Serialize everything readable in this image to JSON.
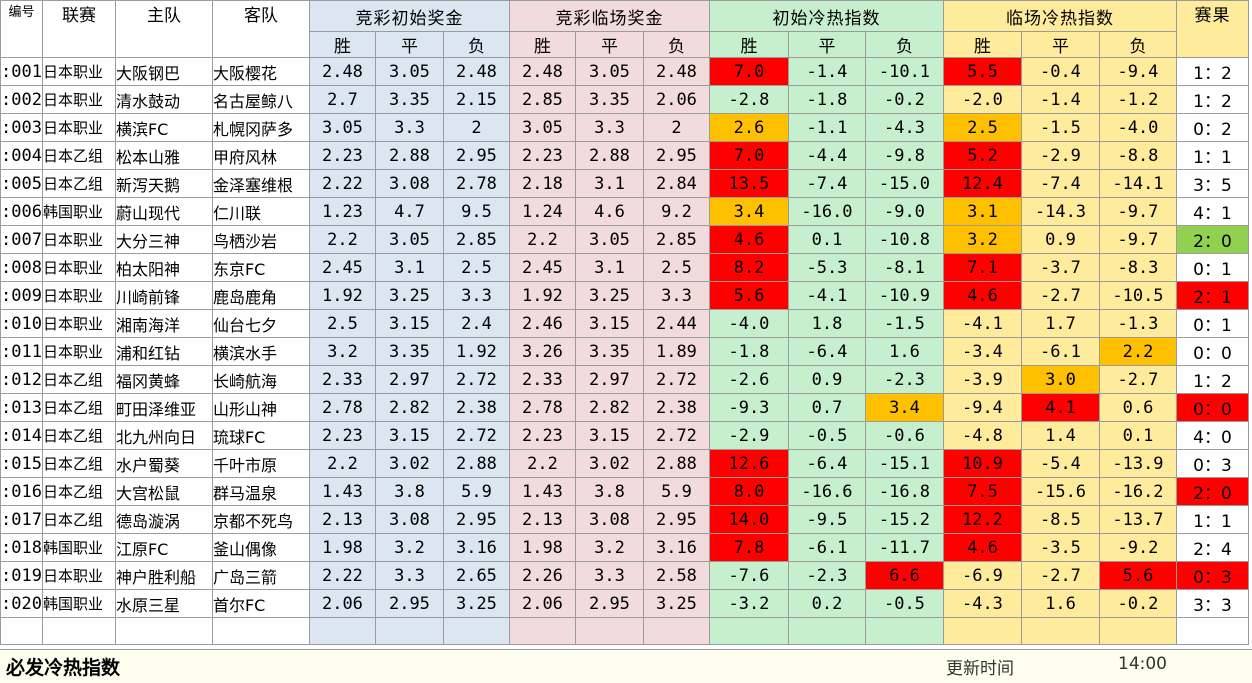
{
  "headers": {
    "id": "编号",
    "league": "联赛",
    "home": "主队",
    "away": "客队",
    "g1": "竞彩初始奖金",
    "g2": "竞彩临场奖金",
    "g3": "初始冷热指数",
    "g4": "临场冷热指数",
    "result": "赛果",
    "sub": [
      "胜",
      "平",
      "负"
    ]
  },
  "colors": {
    "bg_white": "#ffffff",
    "bg_blue": "#dce6f1",
    "bg_pink": "#f2dcdb",
    "bg_green": "#c6efce",
    "bg_yellow": "#ffeb9c",
    "bg_cream": "#fffff0",
    "hot_red": "#ff0000",
    "warm_orange": "#ffc000",
    "bright_green": "#92d050"
  },
  "rows": [
    {
      "id": ":001",
      "league": "日本职业",
      "home": "大阪钢巴",
      "away": "大阪樱花",
      "init": [
        "2.48",
        "3.05",
        "2.48"
      ],
      "live": [
        "2.48",
        "3.05",
        "2.48"
      ],
      "ci": [
        "7.0",
        "-1.4",
        "-10.1"
      ],
      "li": [
        "5.5",
        "-0.4",
        "-9.4"
      ],
      "res": "1：2",
      "ci_hl": [
        2,
        0,
        0
      ],
      "li_hl": [
        2,
        0,
        0
      ],
      "res_hl": 0
    },
    {
      "id": ":002",
      "league": "日本职业",
      "home": "清水鼓动",
      "away": "名古屋鲸八",
      "init": [
        "2.7",
        "3.35",
        "2.15"
      ],
      "live": [
        "2.85",
        "3.35",
        "2.06"
      ],
      "ci": [
        "-2.8",
        "-1.8",
        "-0.2"
      ],
      "li": [
        "-2.0",
        "-1.4",
        "-1.2"
      ],
      "res": "1：2",
      "ci_hl": [
        0,
        0,
        0
      ],
      "li_hl": [
        0,
        0,
        0
      ],
      "res_hl": 0
    },
    {
      "id": ":003",
      "league": "日本职业",
      "home": "横滨FC",
      "away": "札幌冈萨多",
      "init": [
        "3.05",
        "3.3",
        "2"
      ],
      "live": [
        "3.05",
        "3.3",
        "2"
      ],
      "ci": [
        "2.6",
        "-1.1",
        "-4.3"
      ],
      "li": [
        "2.5",
        "-1.5",
        "-4.0"
      ],
      "res": "0：2",
      "ci_hl": [
        1,
        0,
        0
      ],
      "li_hl": [
        1,
        0,
        0
      ],
      "res_hl": 0
    },
    {
      "id": ":004",
      "league": "日本乙组",
      "home": "松本山雅",
      "away": "甲府风林",
      "init": [
        "2.23",
        "2.88",
        "2.95"
      ],
      "live": [
        "2.23",
        "2.88",
        "2.95"
      ],
      "ci": [
        "7.0",
        "-4.4",
        "-9.8"
      ],
      "li": [
        "5.2",
        "-2.9",
        "-8.8"
      ],
      "res": "1：1",
      "ci_hl": [
        2,
        0,
        0
      ],
      "li_hl": [
        2,
        0,
        0
      ],
      "res_hl": 0
    },
    {
      "id": ":005",
      "league": "日本乙组",
      "home": "新泻天鹅",
      "away": "金泽塞维根",
      "init": [
        "2.22",
        "3.08",
        "2.78"
      ],
      "live": [
        "2.18",
        "3.1",
        "2.84"
      ],
      "ci": [
        "13.5",
        "-7.4",
        "-15.0"
      ],
      "li": [
        "12.4",
        "-7.4",
        "-14.1"
      ],
      "res": "3：5",
      "ci_hl": [
        2,
        0,
        0
      ],
      "li_hl": [
        2,
        0,
        0
      ],
      "res_hl": 0
    },
    {
      "id": ":006",
      "league": "韩国职业",
      "home": "蔚山现代",
      "away": "仁川联",
      "init": [
        "1.23",
        "4.7",
        "9.5"
      ],
      "live": [
        "1.24",
        "4.6",
        "9.2"
      ],
      "ci": [
        "3.4",
        "-16.0",
        "-9.0"
      ],
      "li": [
        "3.1",
        "-14.3",
        "-9.7"
      ],
      "res": "4：1",
      "ci_hl": [
        1,
        0,
        0
      ],
      "li_hl": [
        1,
        0,
        0
      ],
      "res_hl": 0
    },
    {
      "id": ":007",
      "league": "日本职业",
      "home": "大分三神",
      "away": "鸟栖沙岩",
      "init": [
        "2.2",
        "3.05",
        "2.85"
      ],
      "live": [
        "2.2",
        "3.05",
        "2.85"
      ],
      "ci": [
        "4.6",
        "0.1",
        "-10.8"
      ],
      "li": [
        "3.2",
        "0.9",
        "-9.7"
      ],
      "res": "2：0",
      "ci_hl": [
        2,
        0,
        0
      ],
      "li_hl": [
        1,
        0,
        0
      ],
      "res_hl": 3
    },
    {
      "id": ":008",
      "league": "日本职业",
      "home": "柏太阳神",
      "away": "东京FC",
      "init": [
        "2.45",
        "3.1",
        "2.5"
      ],
      "live": [
        "2.45",
        "3.1",
        "2.5"
      ],
      "ci": [
        "8.2",
        "-5.3",
        "-8.1"
      ],
      "li": [
        "7.1",
        "-3.7",
        "-8.3"
      ],
      "res": "0：1",
      "ci_hl": [
        2,
        0,
        0
      ],
      "li_hl": [
        2,
        0,
        0
      ],
      "res_hl": 0
    },
    {
      "id": ":009",
      "league": "日本职业",
      "home": "川崎前锋",
      "away": "鹿岛鹿角",
      "init": [
        "1.92",
        "3.25",
        "3.3"
      ],
      "live": [
        "1.92",
        "3.25",
        "3.3"
      ],
      "ci": [
        "5.6",
        "-4.1",
        "-10.9"
      ],
      "li": [
        "4.6",
        "-2.7",
        "-10.5"
      ],
      "res": "2：1",
      "ci_hl": [
        2,
        0,
        0
      ],
      "li_hl": [
        2,
        0,
        0
      ],
      "res_hl": 2
    },
    {
      "id": ":010",
      "league": "日本职业",
      "home": "湘南海洋",
      "away": "仙台七夕",
      "init": [
        "2.5",
        "3.15",
        "2.4"
      ],
      "live": [
        "2.46",
        "3.15",
        "2.44"
      ],
      "ci": [
        "-4.0",
        "1.8",
        "-1.5"
      ],
      "li": [
        "-4.1",
        "1.7",
        "-1.3"
      ],
      "res": "0：1",
      "ci_hl": [
        0,
        0,
        0
      ],
      "li_hl": [
        0,
        0,
        0
      ],
      "res_hl": 0
    },
    {
      "id": ":011",
      "league": "日本职业",
      "home": "浦和红钻",
      "away": "横滨水手",
      "init": [
        "3.2",
        "3.35",
        "1.92"
      ],
      "live": [
        "3.26",
        "3.35",
        "1.89"
      ],
      "ci": [
        "-1.8",
        "-6.4",
        "1.6"
      ],
      "li": [
        "-3.4",
        "-6.1",
        "2.2"
      ],
      "res": "0：0",
      "ci_hl": [
        0,
        0,
        0
      ],
      "li_hl": [
        0,
        0,
        1
      ],
      "res_hl": 0
    },
    {
      "id": ":012",
      "league": "日本乙组",
      "home": "福冈黄蜂",
      "away": "长崎航海",
      "init": [
        "2.33",
        "2.97",
        "2.72"
      ],
      "live": [
        "2.33",
        "2.97",
        "2.72"
      ],
      "ci": [
        "-2.6",
        "0.9",
        "-2.3"
      ],
      "li": [
        "-3.9",
        "3.0",
        "-2.7"
      ],
      "res": "1：2",
      "ci_hl": [
        0,
        0,
        0
      ],
      "li_hl": [
        0,
        1,
        0
      ],
      "res_hl": 0
    },
    {
      "id": ":013",
      "league": "日本乙组",
      "home": "町田泽维亚",
      "away": "山形山神",
      "init": [
        "2.78",
        "2.82",
        "2.38"
      ],
      "live": [
        "2.78",
        "2.82",
        "2.38"
      ],
      "ci": [
        "-9.3",
        "0.7",
        "3.4"
      ],
      "li": [
        "-9.4",
        "4.1",
        "0.6"
      ],
      "res": "0：0",
      "ci_hl": [
        0,
        0,
        1
      ],
      "li_hl": [
        0,
        2,
        0
      ],
      "res_hl": 2
    },
    {
      "id": ":014",
      "league": "日本乙组",
      "home": "北九州向日",
      "away": "琉球FC",
      "init": [
        "2.23",
        "3.15",
        "2.72"
      ],
      "live": [
        "2.23",
        "3.15",
        "2.72"
      ],
      "ci": [
        "-2.9",
        "-0.5",
        "-0.6"
      ],
      "li": [
        "-4.8",
        "1.4",
        "0.1"
      ],
      "res": "4：0",
      "ci_hl": [
        0,
        0,
        0
      ],
      "li_hl": [
        0,
        0,
        0
      ],
      "res_hl": 0
    },
    {
      "id": ":015",
      "league": "日本乙组",
      "home": "水户蜀葵",
      "away": "千叶市原",
      "init": [
        "2.2",
        "3.02",
        "2.88"
      ],
      "live": [
        "2.2",
        "3.02",
        "2.88"
      ],
      "ci": [
        "12.6",
        "-6.4",
        "-15.1"
      ],
      "li": [
        "10.9",
        "-5.4",
        "-13.9"
      ],
      "res": "0：3",
      "ci_hl": [
        2,
        0,
        0
      ],
      "li_hl": [
        2,
        0,
        0
      ],
      "res_hl": 0
    },
    {
      "id": ":016",
      "league": "日本乙组",
      "home": "大宫松鼠",
      "away": "群马温泉",
      "init": [
        "1.43",
        "3.8",
        "5.9"
      ],
      "live": [
        "1.43",
        "3.8",
        "5.9"
      ],
      "ci": [
        "8.0",
        "-16.6",
        "-16.8"
      ],
      "li": [
        "7.5",
        "-15.6",
        "-16.2"
      ],
      "res": "2：0",
      "ci_hl": [
        2,
        0,
        0
      ],
      "li_hl": [
        2,
        0,
        0
      ],
      "res_hl": 2
    },
    {
      "id": ":017",
      "league": "日本乙组",
      "home": "德岛漩涡",
      "away": "京都不死鸟",
      "init": [
        "2.13",
        "3.08",
        "2.95"
      ],
      "live": [
        "2.13",
        "3.08",
        "2.95"
      ],
      "ci": [
        "14.0",
        "-9.5",
        "-15.2"
      ],
      "li": [
        "12.2",
        "-8.5",
        "-13.7"
      ],
      "res": "1：1",
      "ci_hl": [
        2,
        0,
        0
      ],
      "li_hl": [
        2,
        0,
        0
      ],
      "res_hl": 0
    },
    {
      "id": ":018",
      "league": "韩国职业",
      "home": "江原FC",
      "away": "釜山偶像",
      "init": [
        "1.98",
        "3.2",
        "3.16"
      ],
      "live": [
        "1.98",
        "3.2",
        "3.16"
      ],
      "ci": [
        "7.8",
        "-6.1",
        "-11.7"
      ],
      "li": [
        "4.6",
        "-3.5",
        "-9.2"
      ],
      "res": "2：4",
      "ci_hl": [
        2,
        0,
        0
      ],
      "li_hl": [
        2,
        0,
        0
      ],
      "res_hl": 0
    },
    {
      "id": ":019",
      "league": "日本职业",
      "home": "神户胜利船",
      "away": "广岛三箭",
      "init": [
        "2.22",
        "3.3",
        "2.65"
      ],
      "live": [
        "2.26",
        "3.3",
        "2.58"
      ],
      "ci": [
        "-7.6",
        "-2.3",
        "6.6"
      ],
      "li": [
        "-6.9",
        "-2.7",
        "5.6"
      ],
      "res": "0：3",
      "ci_hl": [
        0,
        0,
        2
      ],
      "li_hl": [
        0,
        0,
        2
      ],
      "res_hl": 2
    },
    {
      "id": ":020",
      "league": "韩国职业",
      "home": "水原三星",
      "away": "首尔FC",
      "init": [
        "2.06",
        "2.95",
        "3.25"
      ],
      "live": [
        "2.06",
        "2.95",
        "3.25"
      ],
      "ci": [
        "-3.2",
        "0.2",
        "-0.5"
      ],
      "li": [
        "-4.3",
        "1.6",
        "-0.2"
      ],
      "res": "3：3",
      "ci_hl": [
        0,
        0,
        0
      ],
      "li_hl": [
        0,
        0,
        0
      ],
      "res_hl": 0
    }
  ],
  "footer": {
    "title": "必发冷热指数",
    "update_label": "更新时间",
    "update_time": "14:00"
  }
}
